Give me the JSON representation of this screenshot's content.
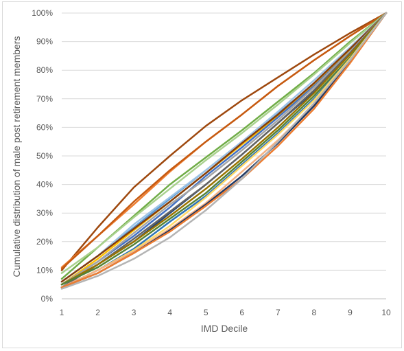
{
  "chart_data": {
    "type": "line",
    "title": "",
    "xlabel": "IMD Decile",
    "ylabel": "Cumulative distribution of male post retirement members",
    "x": [
      1,
      2,
      3,
      4,
      5,
      6,
      7,
      8,
      9,
      10
    ],
    "xlim": [
      1,
      10
    ],
    "ylim": [
      0,
      1
    ],
    "yticks": [
      "0%",
      "10%",
      "20%",
      "30%",
      "40%",
      "50%",
      "60%",
      "70%",
      "80%",
      "90%",
      "100%"
    ],
    "xticks": [
      "1",
      "2",
      "3",
      "4",
      "5",
      "6",
      "7",
      "8",
      "9",
      "10"
    ],
    "grid": "horizontal",
    "legend": "none",
    "series": [
      {
        "color": "#9e480e",
        "values": [
          0.1,
          0.25,
          0.39,
          0.5,
          0.605,
          0.695,
          0.775,
          0.855,
          0.93,
          1.0
        ]
      },
      {
        "color": "#ed7d31",
        "values": [
          0.11,
          0.22,
          0.33,
          0.445,
          0.55,
          0.645,
          0.745,
          0.835,
          0.92,
          1.0
        ]
      },
      {
        "color": "#c55a11",
        "values": [
          0.105,
          0.22,
          0.34,
          0.45,
          0.55,
          0.645,
          0.745,
          0.835,
          0.92,
          1.0
        ]
      },
      {
        "color": "#70ad47",
        "values": [
          0.07,
          0.18,
          0.29,
          0.4,
          0.495,
          0.59,
          0.69,
          0.79,
          0.9,
          1.0
        ]
      },
      {
        "color": "#a9d18e",
        "values": [
          0.09,
          0.18,
          0.285,
          0.385,
          0.485,
          0.58,
          0.68,
          0.785,
          0.895,
          1.0
        ]
      },
      {
        "color": "#5b9bd5",
        "values": [
          0.06,
          0.15,
          0.25,
          0.35,
          0.45,
          0.55,
          0.65,
          0.75,
          0.87,
          1.0
        ]
      },
      {
        "color": "#9dc3e6",
        "values": [
          0.06,
          0.15,
          0.26,
          0.355,
          0.45,
          0.55,
          0.655,
          0.765,
          0.88,
          1.0
        ]
      },
      {
        "color": "#ffc000",
        "values": [
          0.05,
          0.14,
          0.24,
          0.34,
          0.44,
          0.54,
          0.64,
          0.75,
          0.87,
          1.0
        ]
      },
      {
        "color": "#843c0c",
        "values": [
          0.06,
          0.15,
          0.245,
          0.34,
          0.44,
          0.545,
          0.645,
          0.755,
          0.875,
          1.0
        ]
      },
      {
        "color": "#4472c4",
        "values": [
          0.05,
          0.13,
          0.22,
          0.32,
          0.43,
          0.53,
          0.635,
          0.745,
          0.865,
          1.0
        ]
      },
      {
        "color": "#264478",
        "values": [
          0.04,
          0.12,
          0.2,
          0.3,
          0.4,
          0.505,
          0.615,
          0.725,
          0.855,
          1.0
        ]
      },
      {
        "color": "#a5a5a5",
        "values": [
          0.05,
          0.13,
          0.23,
          0.33,
          0.42,
          0.52,
          0.625,
          0.74,
          0.865,
          1.0
        ]
      },
      {
        "color": "#636363",
        "values": [
          0.04,
          0.12,
          0.21,
          0.305,
          0.4,
          0.505,
          0.615,
          0.73,
          0.86,
          1.0
        ]
      },
      {
        "color": "#997300",
        "values": [
          0.05,
          0.12,
          0.2,
          0.29,
          0.385,
          0.49,
          0.6,
          0.72,
          0.855,
          1.0
        ]
      },
      {
        "color": "#548235",
        "values": [
          0.05,
          0.11,
          0.19,
          0.28,
          0.37,
          0.48,
          0.59,
          0.71,
          0.845,
          1.0
        ]
      },
      {
        "color": "#2e75b6",
        "values": [
          0.04,
          0.1,
          0.175,
          0.27,
          0.36,
          0.47,
          0.58,
          0.7,
          0.84,
          1.0
        ]
      },
      {
        "color": "#ffd966",
        "values": [
          0.04,
          0.1,
          0.17,
          0.255,
          0.355,
          0.465,
          0.575,
          0.695,
          0.84,
          1.0
        ]
      },
      {
        "color": "#f4b183",
        "values": [
          0.04,
          0.1,
          0.165,
          0.245,
          0.335,
          0.445,
          0.555,
          0.68,
          0.83,
          1.0
        ]
      },
      {
        "color": "#1f3864",
        "values": [
          0.04,
          0.09,
          0.16,
          0.24,
          0.33,
          0.43,
          0.545,
          0.675,
          0.83,
          1.0
        ]
      },
      {
        "color": "#ed7d31",
        "values": [
          0.04,
          0.09,
          0.16,
          0.235,
          0.325,
          0.42,
          0.535,
          0.665,
          0.825,
          1.0
        ]
      },
      {
        "color": "#b4b4b4",
        "values": [
          0.035,
          0.08,
          0.14,
          0.215,
          0.31,
          0.42,
          0.55,
          0.685,
          0.835,
          1.0
        ]
      }
    ]
  }
}
